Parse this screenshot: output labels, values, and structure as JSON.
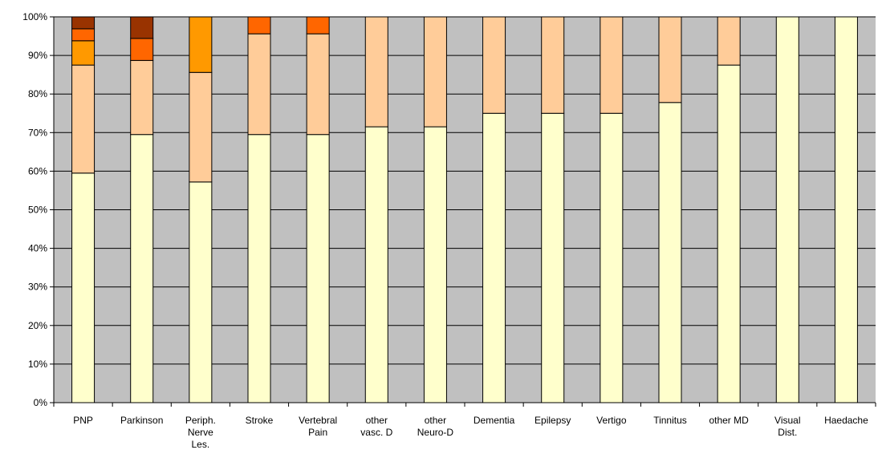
{
  "chart_data": {
    "type": "bar",
    "stacked": true,
    "percent_stacked": true,
    "categories": [
      [
        "PNP"
      ],
      [
        "Parkinson"
      ],
      [
        "Periph.",
        "Nerve",
        "Les."
      ],
      [
        "Stroke"
      ],
      [
        "Vertebral",
        "Pain"
      ],
      [
        "other",
        "vasc. D"
      ],
      [
        "other",
        "Neuro-D"
      ],
      [
        "Dementia"
      ],
      [
        "Epilepsy"
      ],
      [
        "Vertigo"
      ],
      [
        "Tinnitus"
      ],
      [
        "other MD"
      ],
      [
        "Visual",
        "Dist."
      ],
      [
        "Haedache"
      ]
    ],
    "series": [
      {
        "color": "#FFFFCC",
        "values": [
          59.5,
          69.5,
          57.2,
          69.5,
          69.5,
          71.5,
          71.5,
          75.0,
          75.0,
          75.0,
          77.8,
          87.5,
          100.0,
          100.0
        ]
      },
      {
        "color": "#FFCC99",
        "values": [
          28.0,
          19.2,
          28.4,
          26.1,
          26.1,
          28.5,
          28.5,
          25.0,
          25.0,
          25.0,
          22.2,
          12.5,
          0,
          0
        ]
      },
      {
        "color": "#FF9900",
        "values": [
          6.3,
          0,
          14.4,
          0,
          0,
          0,
          0,
          0,
          0,
          0,
          0,
          0,
          0,
          0
        ]
      },
      {
        "color": "#FF6600",
        "values": [
          3.1,
          5.7,
          0,
          4.4,
          4.4,
          0,
          0,
          0,
          0,
          0,
          0,
          0,
          0,
          0
        ]
      },
      {
        "color": "#993300",
        "values": [
          3.1,
          5.6,
          0,
          0,
          0,
          0,
          0,
          0,
          0,
          0,
          0,
          0,
          0,
          0
        ]
      }
    ],
    "y_ticks": [
      "0%",
      "10%",
      "20%",
      "30%",
      "40%",
      "50%",
      "60%",
      "70%",
      "80%",
      "90%",
      "100%"
    ],
    "ylim": [
      0,
      100
    ],
    "grid": true,
    "legend": "none",
    "plot_background": "#C0C0C0",
    "gridline_color": "#000000",
    "bar_outline_color": "#000000"
  }
}
